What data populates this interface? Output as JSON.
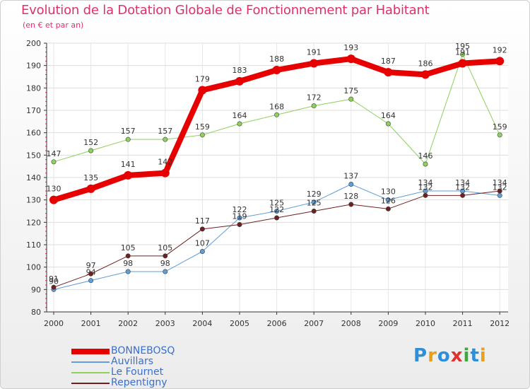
{
  "title": "Evolution de la Dotation Globale de Fonctionnement par Habitant",
  "subtitle": "(en € et par an)",
  "logo": {
    "text": "Proxiti",
    "letters": [
      "P",
      "r",
      "o",
      "x",
      "i",
      "t",
      "i"
    ],
    "colors": [
      "#2e8fd8",
      "#e8a018",
      "#2e8fd8",
      "#e03030",
      "#3aaa3a",
      "#2e8fd8",
      "#e8a018"
    ]
  },
  "chart_data": {
    "type": "line",
    "title": "Evolution de la Dotation Globale de Fonctionnement par Habitant",
    "subtitle": "(en € et par an)",
    "xlabel": "",
    "ylabel": "",
    "ylim": [
      80,
      200
    ],
    "yticks": [
      80,
      90,
      100,
      110,
      120,
      130,
      140,
      150,
      160,
      170,
      180,
      190,
      200
    ],
    "x": [
      "2000",
      "2001",
      "2002",
      "2003",
      "2004",
      "2005",
      "2006",
      "2007",
      "2008",
      "2009",
      "2010",
      "2011",
      "2012"
    ],
    "grid": true,
    "legend_position": "bottom-left",
    "series": [
      {
        "name": "Auvillars",
        "color": "#5f9ed8",
        "width": 1,
        "values": [
          90,
          94,
          98,
          98,
          107,
          122,
          125,
          129,
          137,
          130,
          134,
          134,
          132
        ]
      },
      {
        "name": "Repentigny",
        "color": "#6e2020",
        "width": 1,
        "values": [
          91,
          97,
          105,
          105,
          117,
          119,
          122,
          125,
          128,
          126,
          132,
          132,
          134
        ]
      },
      {
        "name": "Le Fournet",
        "color": "#8ed05a",
        "width": 1,
        "values": [
          147,
          152,
          157,
          157,
          159,
          164,
          168,
          172,
          175,
          164,
          146,
          195,
          159
        ]
      },
      {
        "name": "BONNEBOSQ",
        "color": "#e60000",
        "width": 8,
        "values": [
          130,
          135,
          141,
          142,
          179,
          183,
          188,
          191,
          193,
          187,
          186,
          191,
          192
        ]
      }
    ],
    "legend": [
      "BONNEBOSQ",
      "Auvillars",
      "Le Fournet",
      "Repentigny"
    ]
  }
}
